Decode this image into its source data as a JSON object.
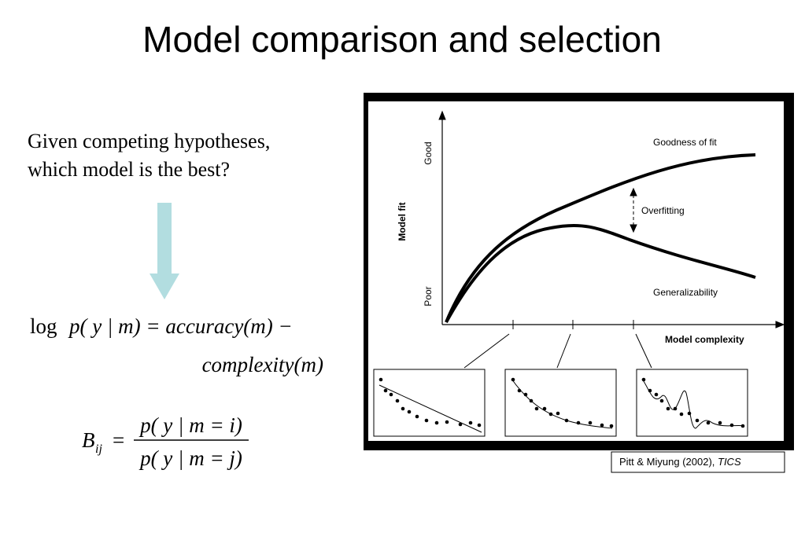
{
  "slide": {
    "title": "Model comparison and selection",
    "intro": [
      "Given competing hypotheses,",
      "which model is the best?"
    ],
    "equation1": {
      "log": "log",
      "rhs1": "p( y | m) = accuracy(m) −",
      "rhs2": "complexity(m)"
    },
    "equation2": {
      "symbol": "B",
      "subscript": "ij",
      "equals": "=",
      "numerator": "p( y | m = i)",
      "denominator": "p( y | m = j)"
    },
    "figure": {
      "y_axis_label": "Model fit",
      "y_high": "Good",
      "y_low": "Poor",
      "x_axis_label": "Model complexity",
      "curve_upper": "Goodness of fit",
      "curve_lower": "Generalizability",
      "gap_label": "Overfitting"
    },
    "citation": {
      "authors": "Pitt & Miyung (2002), ",
      "journal": "TICS"
    }
  }
}
